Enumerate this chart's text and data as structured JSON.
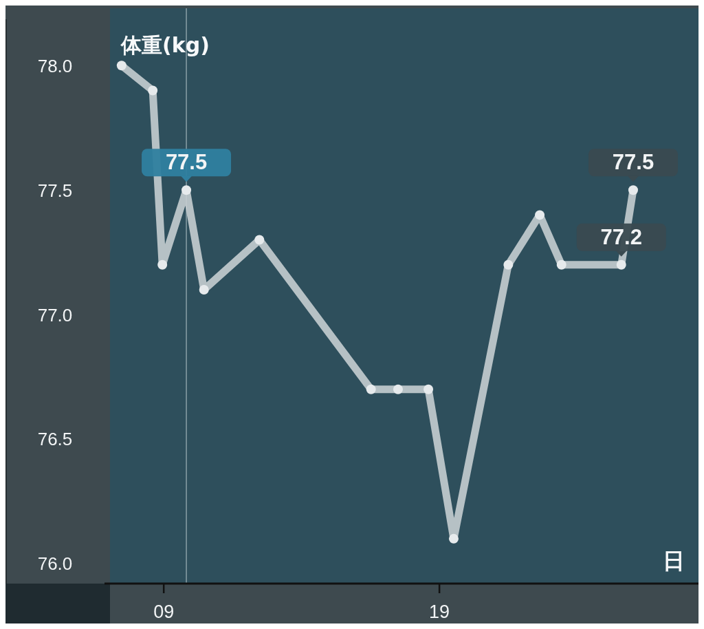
{
  "chart_data": {
    "type": "line",
    "ylabel": "体重(kg)",
    "xlabel": "日",
    "x": [
      7.47,
      8.6,
      8.95,
      9.82,
      10.46,
      12.47,
      16.52,
      17.5,
      18.6,
      19.52,
      21.5,
      22.64,
      23.43,
      25.6,
      26.03
    ],
    "series": [
      {
        "color": "#c5cdd0",
        "values": [
          78.0,
          77.9,
          77.2,
          77.5,
          77.1,
          77.3,
          76.7,
          76.7,
          76.7,
          76.1,
          77.2,
          77.4,
          77.2,
          77.2,
          77.5
        ],
        "value_labels": [
          null,
          null,
          null,
          "77.5",
          null,
          null,
          null,
          null,
          null,
          null,
          null,
          null,
          null,
          "77.2",
          "77.5"
        ]
      }
    ],
    "xlim": [
      7.05,
      28.4
    ],
    "ylim": [
      75.92,
      78.23
    ],
    "xticks": [
      {
        "value": 9,
        "label": "09"
      },
      {
        "value": 19,
        "label": "19"
      }
    ],
    "yticks": [
      {
        "value": 76,
        "label": "76.0"
      },
      76.5,
      {
        "value": 77,
        "label": "77.0"
      },
      77.5,
      {
        "value": 78,
        "label": "78.0"
      }
    ],
    "ref_lines": [
      {
        "axis": "x",
        "value": 9.82,
        "color": "#8aa0a8"
      }
    ],
    "grid": false,
    "marker": "circle",
    "line_style": "solid"
  }
}
